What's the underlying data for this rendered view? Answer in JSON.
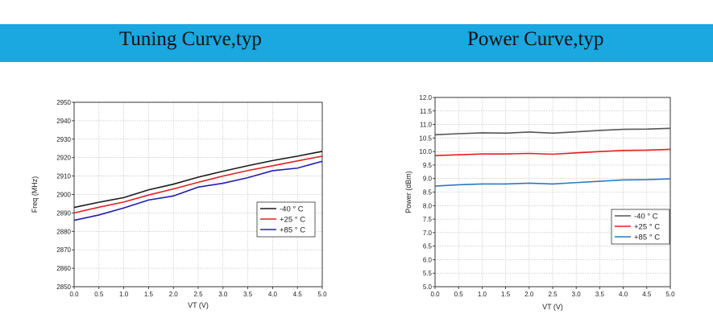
{
  "header": {
    "left_title": "Tuning Curve,typ",
    "right_title": "Power Curve,typ"
  },
  "chart_data": [
    {
      "type": "line",
      "title": "Tuning Curve,typ",
      "xlabel": "VT (V)",
      "ylabel": "Freq (MHz)",
      "xlim": [
        0,
        5
      ],
      "ylim": [
        2850,
        2950
      ],
      "xticks": [
        "0.0",
        "0.5",
        "1.0",
        "1.5",
        "2.0",
        "2.5",
        "3.0",
        "3.5",
        "4.0",
        "4.5",
        "5.0"
      ],
      "yticks": [
        "2850",
        "2860",
        "2870",
        "2880",
        "2890",
        "2900",
        "2910",
        "2920",
        "2930",
        "2940",
        "2950"
      ],
      "grid": true,
      "legend_position": "lower-right",
      "x": [
        0,
        0.5,
        1.0,
        1.5,
        2.0,
        2.5,
        3.0,
        3.5,
        4.0,
        4.5,
        5.0
      ],
      "series": [
        {
          "name": "-40 ° C",
          "color": "#1a1a1a",
          "values": [
            2893,
            2895.8,
            2898.3,
            2902.5,
            2905.6,
            2909.4,
            2912.6,
            2915.6,
            2918.4,
            2920.8,
            2923.4
          ]
        },
        {
          "name": "+25 ° C",
          "color": "#e02020",
          "values": [
            2890,
            2893.1,
            2895.9,
            2899.7,
            2903,
            2906.6,
            2910,
            2913,
            2915.6,
            2918.2,
            2920.8
          ]
        },
        {
          "name": "+85 ° C",
          "color": "#1f1fb0",
          "values": [
            2886,
            2888.9,
            2892.7,
            2897,
            2899.2,
            2904,
            2906.1,
            2909.1,
            2912.9,
            2914.3,
            2918
          ]
        }
      ]
    },
    {
      "type": "line",
      "title": "Power Curve,typ",
      "xlabel": "VT (V)",
      "ylabel": "Power (dBm)",
      "xlim": [
        0,
        5
      ],
      "ylim": [
        5.0,
        12.0
      ],
      "xticks": [
        "0.0",
        "0.5",
        "1.0",
        "1.5",
        "2.0",
        "2.5",
        "3.0",
        "3.5",
        "4.0",
        "4.5",
        "5.0"
      ],
      "yticks": [
        "5.0",
        "5.5",
        "6.0",
        "6.5",
        "7.0",
        "7.5",
        "8.0",
        "8.5",
        "9.0",
        "9.5",
        "10.0",
        "10.5",
        "11.0",
        "11.5",
        "12.0"
      ],
      "grid": true,
      "legend_position": "lower-right",
      "x": [
        0,
        0.5,
        1.0,
        1.5,
        2.0,
        2.5,
        3.0,
        3.5,
        4.0,
        4.5,
        5.0
      ],
      "series": [
        {
          "name": "-40 ° C",
          "color": "#555555",
          "values": [
            10.62,
            10.66,
            10.69,
            10.68,
            10.72,
            10.68,
            10.73,
            10.78,
            10.82,
            10.83,
            10.86
          ]
        },
        {
          "name": "+25 ° C",
          "color": "#e02020",
          "values": [
            9.85,
            9.88,
            9.91,
            9.91,
            9.93,
            9.9,
            9.95,
            10.0,
            10.04,
            10.05,
            10.08
          ]
        },
        {
          "name": "+85 ° C",
          "color": "#2c78c0",
          "values": [
            8.72,
            8.77,
            8.8,
            8.8,
            8.83,
            8.8,
            8.85,
            8.9,
            8.95,
            8.96,
            8.99
          ]
        }
      ]
    }
  ]
}
